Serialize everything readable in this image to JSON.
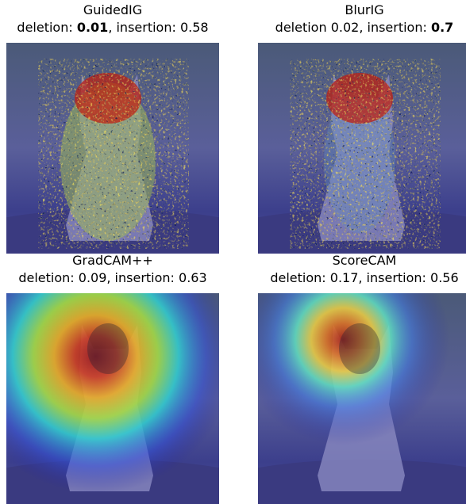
{
  "panels": [
    {
      "title": "GuidedIG",
      "caption": [
        {
          "text": "deletion: "
        },
        {
          "text": "0.01",
          "bold": true
        },
        {
          "text": ", insertion: "
        },
        {
          "text": "0.58"
        }
      ]
    },
    {
      "title": "BlurIG",
      "caption": [
        {
          "text": "deletion 0.02, insertion: "
        },
        {
          "text": "0.7",
          "bold": true
        }
      ]
    },
    {
      "title": "GradCAM++",
      "caption": [
        {
          "text": "deletion: 0.09, insertion: 0.63"
        }
      ]
    },
    {
      "title": "ScoreCAM",
      "caption": [
        {
          "text": "deletion: 0.17, insertion: 0.56"
        }
      ]
    }
  ]
}
